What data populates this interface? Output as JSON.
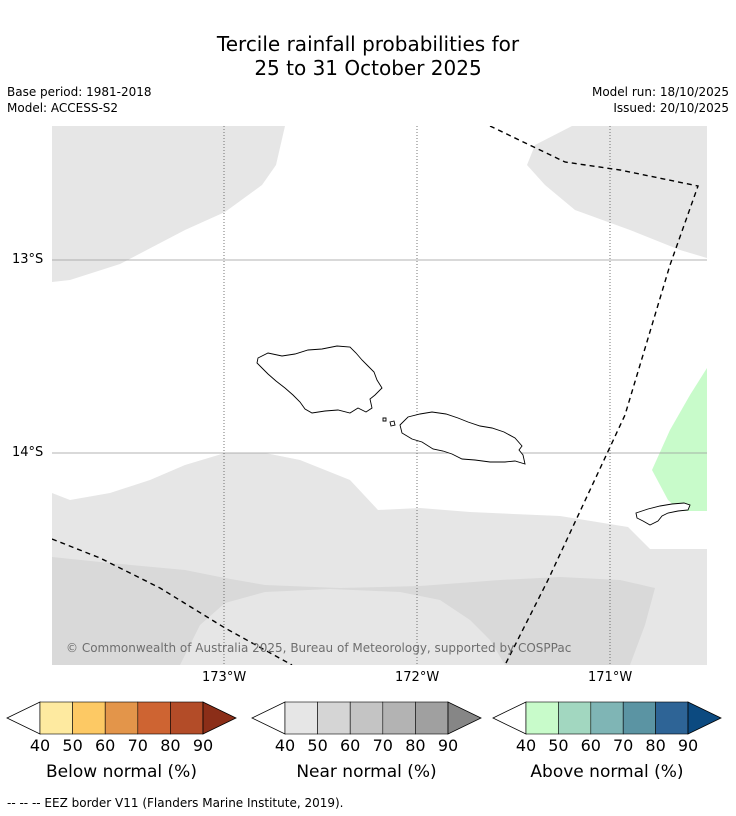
{
  "title": {
    "line1": "Tercile rainfall probabilities for",
    "line2": "25 to 31 October 2025"
  },
  "meta": {
    "base_period": "Base period: 1981-2018",
    "model": "Model: ACCESS-S2",
    "model_run": "Model run: 18/10/2025",
    "issued": "Issued: 20/10/2025"
  },
  "map": {
    "lat_labels": [
      "13°S",
      "14°S"
    ],
    "lon_labels": [
      "173°W",
      "172°W",
      "171°W"
    ],
    "copyright": "© Commonwealth of Australia 2025, Bureau of Meteorology, supported by COSPPac"
  },
  "legend": {
    "below": {
      "label": "Below normal (%)",
      "ticks": [
        "40",
        "50",
        "60",
        "70",
        "80",
        "90"
      ],
      "colors": [
        "#ffffff",
        "#feeaa0",
        "#fdc964",
        "#e3954a",
        "#ce6432",
        "#b34c28",
        "#8b2e18"
      ]
    },
    "near": {
      "label": "Near normal (%)",
      "ticks": [
        "40",
        "50",
        "60",
        "70",
        "80",
        "90"
      ],
      "colors": [
        "#ffffff",
        "#e6e6e6",
        "#d5d5d5",
        "#c4c4c4",
        "#b3b3b3",
        "#a0a0a0",
        "#868686"
      ]
    },
    "above": {
      "label": "Above normal (%)",
      "ticks": [
        "40",
        "50",
        "60",
        "70",
        "80",
        "90"
      ],
      "colors": [
        "#ffffff",
        "#c8fbca",
        "#a2d7c0",
        "#7fb5b5",
        "#5b94a3",
        "#2e6496",
        "#0c4a80"
      ]
    }
  },
  "footnote": "--  --  -- EEZ border V11 (Flanders Marine Institute, 2019)."
}
